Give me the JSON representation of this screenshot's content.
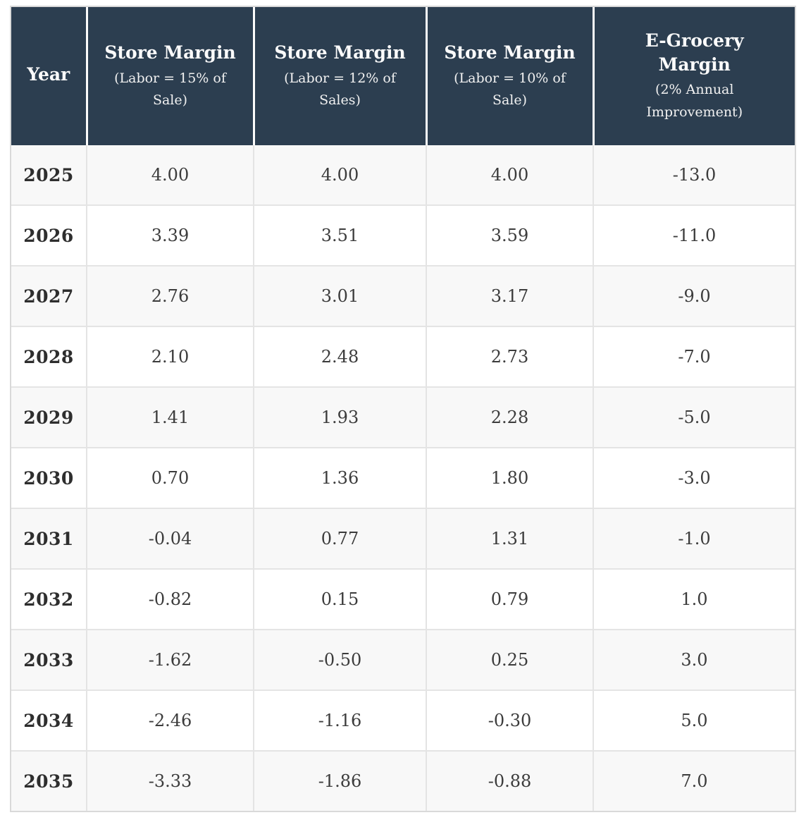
{
  "colors": {
    "header_bg": "#2c3e50",
    "header_text": "#fbfbfb",
    "row_stripe": "#f8f8f8",
    "row_white": "#ffffff",
    "grid_border": "#e4e4e4",
    "outer_border": "#d9d9d9",
    "value_text": "#3c3c3c"
  },
  "table": {
    "columns": [
      {
        "title": "Year",
        "subtitle": ""
      },
      {
        "title": "Store Margin",
        "subtitle": "(Labor = 15% of Sale)"
      },
      {
        "title": "Store Margin",
        "subtitle": "(Labor = 12% of Sales)"
      },
      {
        "title": "Store Margin",
        "subtitle": "(Labor = 10% of Sale)"
      },
      {
        "title": "E-Grocery Margin",
        "subtitle": "(2% Annual Improvement)"
      }
    ],
    "rows": [
      {
        "year": "2025",
        "values": [
          "4.00",
          "4.00",
          "4.00",
          "-13.0"
        ]
      },
      {
        "year": "2026",
        "values": [
          "3.39",
          "3.51",
          "3.59",
          "-11.0"
        ]
      },
      {
        "year": "2027",
        "values": [
          "2.76",
          "3.01",
          "3.17",
          "-9.0"
        ]
      },
      {
        "year": "2028",
        "values": [
          "2.10",
          "2.48",
          "2.73",
          "-7.0"
        ]
      },
      {
        "year": "2029",
        "values": [
          "1.41",
          "1.93",
          "2.28",
          "-5.0"
        ]
      },
      {
        "year": "2030",
        "values": [
          "0.70",
          "1.36",
          "1.80",
          "-3.0"
        ]
      },
      {
        "year": "2031",
        "values": [
          "-0.04",
          "0.77",
          "1.31",
          "-1.0"
        ]
      },
      {
        "year": "2032",
        "values": [
          "-0.82",
          "0.15",
          "0.79",
          "1.0"
        ]
      },
      {
        "year": "2033",
        "values": [
          "-1.62",
          "-0.50",
          "0.25",
          "3.0"
        ]
      },
      {
        "year": "2034",
        "values": [
          "-2.46",
          "-1.16",
          "-0.30",
          "5.0"
        ]
      },
      {
        "year": "2035",
        "values": [
          "-3.33",
          "-1.86",
          "-0.88",
          "7.0"
        ]
      }
    ]
  },
  "chart_data": {
    "type": "table",
    "columns": [
      "Year",
      "Store Margin (Labor = 15% of Sale)",
      "Store Margin (Labor = 12% of Sales)",
      "Store Margin (Labor = 10% of Sale)",
      "E-Grocery Margin (2% Annual Improvement)"
    ],
    "rows": [
      [
        2025,
        4.0,
        4.0,
        4.0,
        -13.0
      ],
      [
        2026,
        3.39,
        3.51,
        3.59,
        -11.0
      ],
      [
        2027,
        2.76,
        3.01,
        3.17,
        -9.0
      ],
      [
        2028,
        2.1,
        2.48,
        2.73,
        -7.0
      ],
      [
        2029,
        1.41,
        1.93,
        2.28,
        -5.0
      ],
      [
        2030,
        0.7,
        1.36,
        1.8,
        -3.0
      ],
      [
        2031,
        -0.04,
        0.77,
        1.31,
        -1.0
      ],
      [
        2032,
        -0.82,
        0.15,
        0.79,
        1.0
      ],
      [
        2033,
        -1.62,
        -0.5,
        0.25,
        3.0
      ],
      [
        2034,
        -2.46,
        -1.16,
        -0.3,
        5.0
      ],
      [
        2035,
        -3.33,
        -1.86,
        -0.88,
        7.0
      ]
    ]
  }
}
